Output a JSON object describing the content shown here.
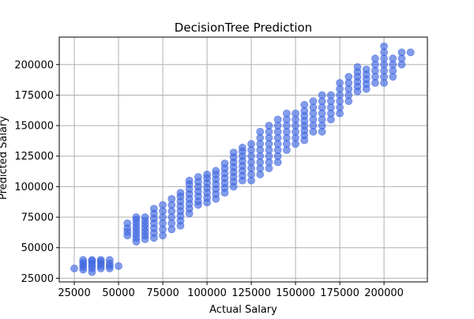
{
  "chart_data": {
    "type": "scatter",
    "title": "DecisionTree Prediction",
    "xlabel": "Actual Salary",
    "ylabel": "Predicted Salary",
    "xlim": [
      16500,
      224500
    ],
    "ylim": [
      22000,
      222500
    ],
    "xticks": [
      25000,
      50000,
      75000,
      100000,
      125000,
      150000,
      175000,
      200000
    ],
    "yticks": [
      25000,
      50000,
      75000,
      100000,
      125000,
      150000,
      175000,
      200000
    ],
    "grid": true,
    "marker_color": "#4169e1",
    "marker_alpha": 0.65,
    "series": [
      {
        "points": [
          [
            25000,
            33000
          ],
          [
            30000,
            32000
          ],
          [
            30000,
            34000
          ],
          [
            30000,
            36000
          ],
          [
            30000,
            38000
          ],
          [
            30000,
            40000
          ],
          [
            35000,
            30000
          ],
          [
            35000,
            33000
          ],
          [
            35000,
            35000
          ],
          [
            35000,
            37000
          ],
          [
            35000,
            39000
          ],
          [
            35000,
            40000
          ],
          [
            40000,
            33000
          ],
          [
            40000,
            35000
          ],
          [
            40000,
            37000
          ],
          [
            40000,
            39000
          ],
          [
            40000,
            40000
          ],
          [
            45000,
            33000
          ],
          [
            45000,
            35000
          ],
          [
            45000,
            37000
          ],
          [
            45000,
            40000
          ],
          [
            50000,
            35000
          ],
          [
            55000,
            60000
          ],
          [
            55000,
            63000
          ],
          [
            55000,
            66000
          ],
          [
            55000,
            70000
          ],
          [
            60000,
            55000
          ],
          [
            60000,
            58000
          ],
          [
            60000,
            61000
          ],
          [
            60000,
            64000
          ],
          [
            60000,
            67000
          ],
          [
            60000,
            70000
          ],
          [
            60000,
            73000
          ],
          [
            60000,
            75000
          ],
          [
            65000,
            57000
          ],
          [
            65000,
            60000
          ],
          [
            65000,
            63000
          ],
          [
            65000,
            66000
          ],
          [
            65000,
            69000
          ],
          [
            65000,
            72000
          ],
          [
            65000,
            75000
          ],
          [
            70000,
            58000
          ],
          [
            70000,
            62000
          ],
          [
            70000,
            66000
          ],
          [
            70000,
            70000
          ],
          [
            70000,
            74000
          ],
          [
            70000,
            78000
          ],
          [
            70000,
            82000
          ],
          [
            75000,
            60000
          ],
          [
            75000,
            65000
          ],
          [
            75000,
            70000
          ],
          [
            75000,
            75000
          ],
          [
            75000,
            80000
          ],
          [
            75000,
            85000
          ],
          [
            80000,
            65000
          ],
          [
            80000,
            70000
          ],
          [
            80000,
            75000
          ],
          [
            80000,
            80000
          ],
          [
            80000,
            85000
          ],
          [
            80000,
            90000
          ],
          [
            85000,
            68000
          ],
          [
            85000,
            72000
          ],
          [
            85000,
            76000
          ],
          [
            85000,
            80000
          ],
          [
            85000,
            84000
          ],
          [
            85000,
            88000
          ],
          [
            85000,
            92000
          ],
          [
            85000,
            95000
          ],
          [
            90000,
            78000
          ],
          [
            90000,
            82000
          ],
          [
            90000,
            86000
          ],
          [
            90000,
            90000
          ],
          [
            90000,
            94000
          ],
          [
            90000,
            98000
          ],
          [
            90000,
            102000
          ],
          [
            90000,
            105000
          ],
          [
            95000,
            85000
          ],
          [
            95000,
            88000
          ],
          [
            95000,
            92000
          ],
          [
            95000,
            96000
          ],
          [
            95000,
            100000
          ],
          [
            95000,
            104000
          ],
          [
            95000,
            108000
          ],
          [
            100000,
            87000
          ],
          [
            100000,
            91000
          ],
          [
            100000,
            95000
          ],
          [
            100000,
            99000
          ],
          [
            100000,
            103000
          ],
          [
            100000,
            107000
          ],
          [
            100000,
            110000
          ],
          [
            105000,
            90000
          ],
          [
            105000,
            94000
          ],
          [
            105000,
            98000
          ],
          [
            105000,
            102000
          ],
          [
            105000,
            106000
          ],
          [
            105000,
            110000
          ],
          [
            105000,
            113000
          ],
          [
            110000,
            95000
          ],
          [
            110000,
            99000
          ],
          [
            110000,
            103000
          ],
          [
            110000,
            107000
          ],
          [
            110000,
            111000
          ],
          [
            110000,
            115000
          ],
          [
            110000,
            119000
          ],
          [
            115000,
            100000
          ],
          [
            115000,
            104000
          ],
          [
            115000,
            108000
          ],
          [
            115000,
            112000
          ],
          [
            115000,
            116000
          ],
          [
            115000,
            120000
          ],
          [
            115000,
            124000
          ],
          [
            115000,
            128000
          ],
          [
            120000,
            105000
          ],
          [
            120000,
            109000
          ],
          [
            120000,
            113000
          ],
          [
            120000,
            117000
          ],
          [
            120000,
            121000
          ],
          [
            120000,
            125000
          ],
          [
            120000,
            129000
          ],
          [
            120000,
            132000
          ],
          [
            125000,
            105000
          ],
          [
            125000,
            110000
          ],
          [
            125000,
            115000
          ],
          [
            125000,
            120000
          ],
          [
            125000,
            125000
          ],
          [
            125000,
            130000
          ],
          [
            125000,
            135000
          ],
          [
            130000,
            110000
          ],
          [
            130000,
            115000
          ],
          [
            130000,
            120000
          ],
          [
            130000,
            125000
          ],
          [
            130000,
            130000
          ],
          [
            130000,
            135000
          ],
          [
            130000,
            140000
          ],
          [
            130000,
            145000
          ],
          [
            135000,
            115000
          ],
          [
            135000,
            120000
          ],
          [
            135000,
            125000
          ],
          [
            135000,
            130000
          ],
          [
            135000,
            135000
          ],
          [
            135000,
            140000
          ],
          [
            135000,
            145000
          ],
          [
            135000,
            150000
          ],
          [
            140000,
            120000
          ],
          [
            140000,
            125000
          ],
          [
            140000,
            130000
          ],
          [
            140000,
            135000
          ],
          [
            140000,
            140000
          ],
          [
            140000,
            145000
          ],
          [
            140000,
            150000
          ],
          [
            140000,
            155000
          ],
          [
            145000,
            130000
          ],
          [
            145000,
            135000
          ],
          [
            145000,
            140000
          ],
          [
            145000,
            145000
          ],
          [
            145000,
            150000
          ],
          [
            145000,
            155000
          ],
          [
            145000,
            160000
          ],
          [
            150000,
            135000
          ],
          [
            150000,
            140000
          ],
          [
            150000,
            145000
          ],
          [
            150000,
            150000
          ],
          [
            150000,
            155000
          ],
          [
            150000,
            160000
          ],
          [
            155000,
            138000
          ],
          [
            155000,
            142000
          ],
          [
            155000,
            146000
          ],
          [
            155000,
            150000
          ],
          [
            155000,
            154000
          ],
          [
            155000,
            158000
          ],
          [
            155000,
            162000
          ],
          [
            155000,
            167000
          ],
          [
            160000,
            145000
          ],
          [
            160000,
            150000
          ],
          [
            160000,
            155000
          ],
          [
            160000,
            160000
          ],
          [
            160000,
            165000
          ],
          [
            160000,
            170000
          ],
          [
            165000,
            145000
          ],
          [
            165000,
            150000
          ],
          [
            165000,
            155000
          ],
          [
            165000,
            160000
          ],
          [
            165000,
            165000
          ],
          [
            165000,
            170000
          ],
          [
            165000,
            175000
          ],
          [
            170000,
            155000
          ],
          [
            170000,
            160000
          ],
          [
            170000,
            165000
          ],
          [
            170000,
            170000
          ],
          [
            170000,
            175000
          ],
          [
            175000,
            160000
          ],
          [
            175000,
            165000
          ],
          [
            175000,
            170000
          ],
          [
            175000,
            175000
          ],
          [
            175000,
            180000
          ],
          [
            175000,
            185000
          ],
          [
            180000,
            170000
          ],
          [
            180000,
            175000
          ],
          [
            180000,
            180000
          ],
          [
            180000,
            185000
          ],
          [
            180000,
            190000
          ],
          [
            185000,
            178000
          ],
          [
            185000,
            182000
          ],
          [
            185000,
            186000
          ],
          [
            185000,
            190000
          ],
          [
            185000,
            194000
          ],
          [
            185000,
            198000
          ],
          [
            190000,
            180000
          ],
          [
            190000,
            184000
          ],
          [
            190000,
            188000
          ],
          [
            190000,
            192000
          ],
          [
            190000,
            196000
          ],
          [
            195000,
            185000
          ],
          [
            195000,
            190000
          ],
          [
            195000,
            195000
          ],
          [
            195000,
            200000
          ],
          [
            195000,
            205000
          ],
          [
            200000,
            185000
          ],
          [
            200000,
            190000
          ],
          [
            200000,
            195000
          ],
          [
            200000,
            200000
          ],
          [
            200000,
            205000
          ],
          [
            200000,
            210000
          ],
          [
            200000,
            215000
          ],
          [
            205000,
            190000
          ],
          [
            205000,
            195000
          ],
          [
            205000,
            200000
          ],
          [
            205000,
            205000
          ],
          [
            210000,
            200000
          ],
          [
            210000,
            205000
          ],
          [
            210000,
            210000
          ],
          [
            215000,
            210000
          ]
        ]
      }
    ]
  }
}
